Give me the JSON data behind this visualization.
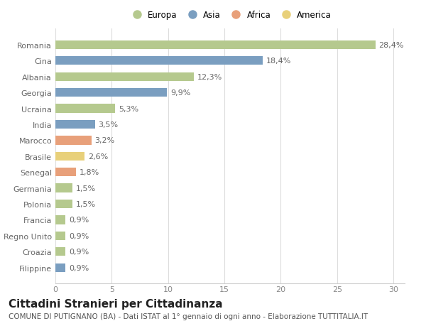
{
  "countries": [
    "Romania",
    "Cina",
    "Albania",
    "Georgia",
    "Ucraina",
    "India",
    "Marocco",
    "Brasile",
    "Senegal",
    "Germania",
    "Polonia",
    "Francia",
    "Regno Unito",
    "Croazia",
    "Filippine"
  ],
  "values": [
    28.4,
    18.4,
    12.3,
    9.9,
    5.3,
    3.5,
    3.2,
    2.6,
    1.8,
    1.5,
    1.5,
    0.9,
    0.9,
    0.9,
    0.9
  ],
  "labels": [
    "28,4%",
    "18,4%",
    "12,3%",
    "9,9%",
    "5,3%",
    "3,5%",
    "3,2%",
    "2,6%",
    "1,8%",
    "1,5%",
    "1,5%",
    "0,9%",
    "0,9%",
    "0,9%",
    "0,9%"
  ],
  "continents": [
    "Europa",
    "Asia",
    "Europa",
    "Asia",
    "Europa",
    "Asia",
    "Africa",
    "America",
    "Africa",
    "Europa",
    "Europa",
    "Europa",
    "Europa",
    "Europa",
    "Asia"
  ],
  "colors": {
    "Europa": "#b5c98e",
    "Asia": "#7a9ec0",
    "Africa": "#e8a07a",
    "America": "#e8d07a"
  },
  "xlim": [
    0,
    31
  ],
  "xticks": [
    0,
    5,
    10,
    15,
    20,
    25,
    30
  ],
  "title": "Cittadini Stranieri per Cittadinanza",
  "subtitle": "COMUNE DI PUTIGNANO (BA) - Dati ISTAT al 1° gennaio di ogni anno - Elaborazione TUTTITALIA.IT",
  "background_color": "#ffffff",
  "bar_height": 0.55,
  "label_fontsize": 8,
  "title_fontsize": 11,
  "subtitle_fontsize": 7.5,
  "ytick_fontsize": 8,
  "xtick_fontsize": 8
}
